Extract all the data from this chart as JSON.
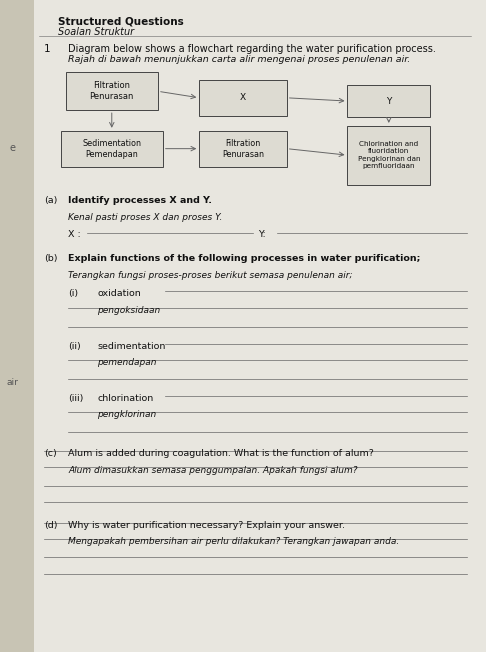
{
  "title_bold": "Structured Questions",
  "title_italic": "Soalan Struktur",
  "question_number": "1",
  "question_text": "Diagram below shows a flowchart regarding the water purification process.",
  "question_text_italic": "Rajah di bawah menunjukkan carta alir mengenai proses penulenan air.",
  "bg_color": "#c8c4b4",
  "page_color": "#e8e6df",
  "box_facecolor": "#dddbd2",
  "box_edgecolor": "#444444",
  "line_color": "#666666",
  "text_color": "#111111",
  "spine_color": "#9a9890",
  "left_label_e": "e",
  "left_label_air": "air"
}
